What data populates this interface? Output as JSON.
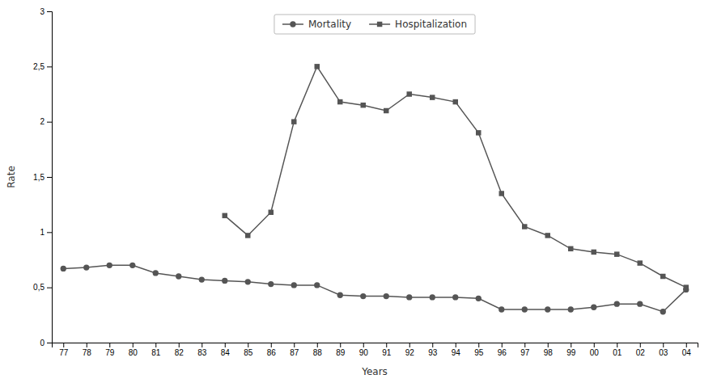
{
  "chart_data": {
    "type": "line",
    "xlabel": "Years",
    "ylabel": "Rate",
    "categories": [
      "77",
      "78",
      "79",
      "80",
      "81",
      "82",
      "83",
      "84",
      "85",
      "86",
      "87",
      "88",
      "89",
      "90",
      "91",
      "92",
      "93",
      "94",
      "95",
      "96",
      "97",
      "98",
      "99",
      "00",
      "01",
      "02",
      "03",
      "04"
    ],
    "series": [
      {
        "name": "Mortality",
        "color": "#555555",
        "marker": "circle",
        "line_style": "solid",
        "values": [
          0.67,
          0.68,
          0.7,
          0.7,
          0.63,
          0.6,
          0.57,
          0.56,
          0.55,
          0.53,
          0.52,
          0.52,
          0.43,
          0.42,
          0.42,
          0.41,
          0.41,
          0.41,
          0.4,
          0.3,
          0.3,
          0.3,
          0.3,
          0.32,
          0.35,
          0.35,
          0.28,
          0.48
        ]
      },
      {
        "name": "Hospitalization",
        "color": "#555555",
        "marker": "square",
        "line_style": "solid",
        "values": [
          null,
          null,
          null,
          null,
          null,
          null,
          null,
          1.15,
          0.97,
          1.18,
          2.0,
          2.5,
          2.18,
          2.15,
          2.1,
          2.25,
          2.22,
          2.18,
          1.9,
          1.35,
          1.05,
          0.97,
          0.85,
          0.82,
          0.8,
          0.72,
          0.6,
          0.5
        ]
      }
    ],
    "ylim": [
      0,
      3
    ],
    "yticks": [
      0,
      {
        "value": 0.5,
        "label": "0,5"
      },
      1,
      {
        "value": 1.5,
        "label": "1,5"
      },
      2,
      {
        "value": 2.5,
        "label": "2,5"
      },
      3
    ],
    "grid": false,
    "legend": "upper center"
  }
}
